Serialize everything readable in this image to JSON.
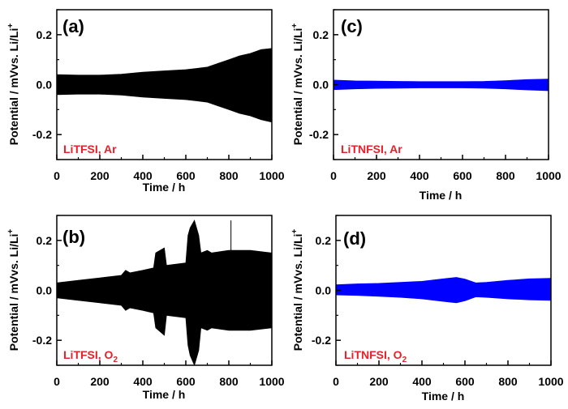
{
  "colors": {
    "black": "#000000",
    "blue": "#0000ff",
    "annotation": "#e8202a"
  },
  "chart_data": [
    {
      "panel": "a",
      "type": "area",
      "panel_label": "(a)",
      "annotation": "LiTFSI, Ar",
      "xlabel": "Time / h",
      "ylabel": "Potential / mVvs. Li/Li+",
      "xlim": [
        0,
        1000
      ],
      "ylim": [
        -0.3,
        0.3
      ],
      "xticks": [
        "0",
        "200",
        "400",
        "600",
        "800",
        "1000"
      ],
      "yticks": [
        "0.2",
        "0.0",
        "-0.2"
      ],
      "series": [
        {
          "color": "#000000",
          "x": [
            0,
            100,
            200,
            300,
            400,
            500,
            600,
            650,
            700,
            750,
            800,
            850,
            900,
            950,
            1000
          ],
          "upper": [
            0.04,
            0.038,
            0.038,
            0.042,
            0.05,
            0.055,
            0.06,
            0.065,
            0.07,
            0.085,
            0.1,
            0.115,
            0.125,
            0.14,
            0.145
          ],
          "lower": [
            -0.04,
            -0.038,
            -0.038,
            -0.042,
            -0.05,
            -0.055,
            -0.06,
            -0.065,
            -0.07,
            -0.085,
            -0.1,
            -0.115,
            -0.125,
            -0.14,
            -0.15
          ]
        }
      ]
    },
    {
      "panel": "b",
      "type": "area",
      "panel_label": "(b)",
      "annotation": "LiTFSI, O",
      "annotation_sub": "2",
      "xlabel": "Time / h",
      "ylabel": "Potential / mVvs. Li/Li+",
      "xlim": [
        0,
        1000
      ],
      "ylim": [
        -0.3,
        0.3
      ],
      "xticks": [
        "0",
        "200",
        "400",
        "600",
        "800",
        "1000"
      ],
      "yticks": [
        "0.2",
        "0.0",
        "-0.2"
      ],
      "series": [
        {
          "color": "#000000",
          "x": [
            0,
            100,
            200,
            300,
            320,
            340,
            400,
            450,
            460,
            500,
            510,
            600,
            610,
            620,
            640,
            660,
            670,
            700,
            720,
            800,
            900,
            1000
          ],
          "upper": [
            0.03,
            0.04,
            0.05,
            0.06,
            0.08,
            0.07,
            0.08,
            0.09,
            0.15,
            0.17,
            0.1,
            0.11,
            0.22,
            0.25,
            0.28,
            0.22,
            0.15,
            0.16,
            0.15,
            0.16,
            0.16,
            0.15
          ],
          "lower": [
            -0.03,
            -0.04,
            -0.05,
            -0.06,
            -0.08,
            -0.07,
            -0.08,
            -0.09,
            -0.15,
            -0.18,
            -0.1,
            -0.11,
            -0.22,
            -0.26,
            -0.3,
            -0.24,
            -0.15,
            -0.16,
            -0.15,
            -0.16,
            -0.16,
            -0.15
          ]
        }
      ],
      "spikes": [
        {
          "x": 810,
          "y0": -0.05,
          "y1": 0.28
        }
      ]
    },
    {
      "panel": "c",
      "type": "area",
      "panel_label": "(c)",
      "annotation": "LiTNFSI, Ar",
      "xlabel": "Time / h",
      "ylabel": "Potential / mVvs. Li/Li+",
      "xlim": [
        0,
        1000
      ],
      "ylim": [
        -0.3,
        0.3
      ],
      "xticks": [
        "0",
        "200",
        "400",
        "600",
        "800",
        "1000"
      ],
      "yticks": [
        "0.2",
        "0.0",
        "-0.2"
      ],
      "series": [
        {
          "color": "#0000ff",
          "x": [
            0,
            100,
            200,
            300,
            400,
            500,
            600,
            700,
            800,
            900,
            1000
          ],
          "upper": [
            0.018,
            0.015,
            0.014,
            0.013,
            0.012,
            0.012,
            0.012,
            0.013,
            0.016,
            0.02,
            0.022
          ],
          "lower": [
            -0.02,
            -0.017,
            -0.015,
            -0.014,
            -0.013,
            -0.013,
            -0.013,
            -0.014,
            -0.017,
            -0.021,
            -0.024
          ]
        }
      ]
    },
    {
      "panel": "d",
      "type": "area",
      "panel_label": "(d)",
      "annotation": "LiTNFSI, O",
      "annotation_sub": "2",
      "xlabel": "Time / h",
      "ylabel": "Potential / mVvs. Li/Li+",
      "xlim": [
        0,
        1000
      ],
      "ylim": [
        -0.3,
        0.3
      ],
      "xticks": [
        "0",
        "200",
        "400",
        "600",
        "800",
        "1000"
      ],
      "yticks": [
        "0.2",
        "0.0",
        "-0.2"
      ],
      "series": [
        {
          "color": "#0000ff",
          "x": [
            0,
            100,
            200,
            300,
            400,
            500,
            560,
            600,
            650,
            700,
            800,
            900,
            1000
          ],
          "upper": [
            0.022,
            0.026,
            0.028,
            0.032,
            0.036,
            0.046,
            0.052,
            0.045,
            0.03,
            0.032,
            0.04,
            0.046,
            0.048
          ],
          "lower": [
            -0.018,
            -0.02,
            -0.024,
            -0.028,
            -0.034,
            -0.044,
            -0.05,
            -0.042,
            -0.026,
            -0.028,
            -0.034,
            -0.038,
            -0.04
          ]
        }
      ]
    }
  ]
}
